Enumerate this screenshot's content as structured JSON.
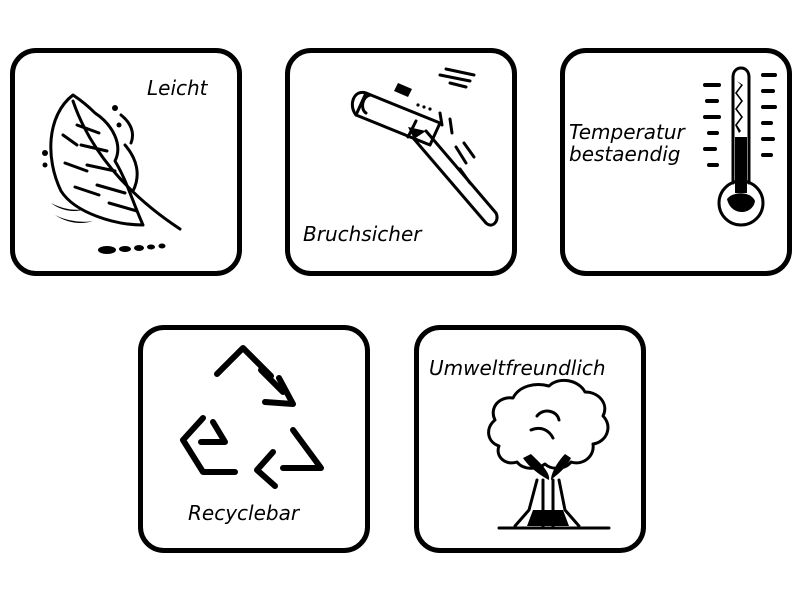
{
  "colors": {
    "stroke": "#000000",
    "background": "#ffffff"
  },
  "tiles": [
    {
      "label": "Leicht",
      "icon": "feather-icon"
    },
    {
      "label": "Bruchsicher",
      "icon": "hammer-icon"
    },
    {
      "label": "Temperatur\nbestaendig",
      "icon": "thermometer-icon"
    },
    {
      "label": "Recyclebar",
      "icon": "recycle-icon"
    },
    {
      "label": "Umweltfreundlich",
      "icon": "tree-icon"
    }
  ]
}
